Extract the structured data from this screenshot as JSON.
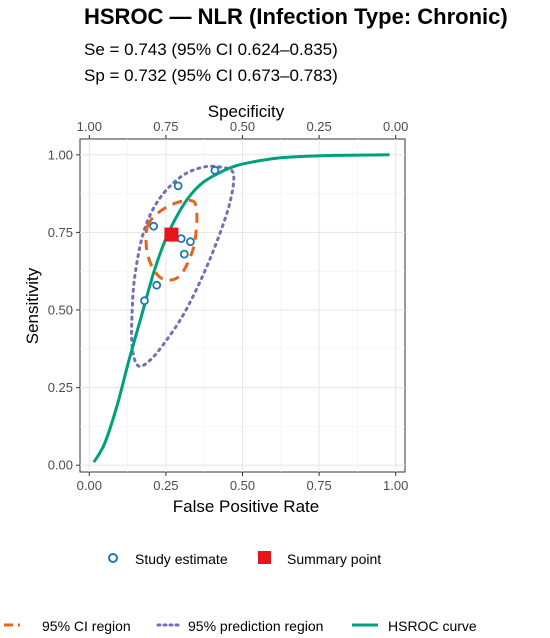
{
  "chart_data": {
    "type": "scatter",
    "title": "HSROC — NLR (Infection Type: Chronic)",
    "subtitles": [
      "Se = 0.743 (95% CI 0.624–0.835)",
      "Sp = 0.732 (95% CI 0.673–0.783)"
    ],
    "xlabel": "False Positive Rate",
    "ylabel": "Sensitivity",
    "secondary_xlabel": "Specificity",
    "xlim": [
      0,
      1
    ],
    "ylim": [
      0,
      1
    ],
    "x_ticks": [
      "0.00",
      "0.25",
      "0.50",
      "0.75",
      "1.00"
    ],
    "y_ticks": [
      "0.00",
      "0.25",
      "0.50",
      "0.75",
      "1.00"
    ],
    "top_ticks": [
      "1.00",
      "0.75",
      "0.50",
      "0.25",
      "0.00"
    ],
    "grid": true,
    "summary_point": {
      "name": "Summary point",
      "fpr": 0.268,
      "sensitivity": 0.743,
      "color": "#e8141c"
    },
    "study_estimates": {
      "name": "Study estimate",
      "color": "#1f78b4",
      "points": [
        {
          "fpr": 0.29,
          "sensitivity": 0.9
        },
        {
          "fpr": 0.41,
          "sensitivity": 0.95
        },
        {
          "fpr": 0.21,
          "sensitivity": 0.77
        },
        {
          "fpr": 0.3,
          "sensitivity": 0.73
        },
        {
          "fpr": 0.33,
          "sensitivity": 0.72
        },
        {
          "fpr": 0.31,
          "sensitivity": 0.68
        },
        {
          "fpr": 0.22,
          "sensitivity": 0.58
        },
        {
          "fpr": 0.18,
          "sensitivity": 0.53
        }
      ]
    },
    "ci_region": {
      "name": "95% CI region",
      "color": "#e8631c",
      "points": [
        [
          0.19,
          0.77
        ],
        [
          0.21,
          0.8
        ],
        [
          0.25,
          0.83
        ],
        [
          0.3,
          0.85
        ],
        [
          0.34,
          0.85
        ],
        [
          0.35,
          0.82
        ],
        [
          0.35,
          0.77
        ],
        [
          0.34,
          0.7
        ],
        [
          0.31,
          0.63
        ],
        [
          0.28,
          0.6
        ],
        [
          0.24,
          0.6
        ],
        [
          0.21,
          0.63
        ],
        [
          0.19,
          0.68
        ],
        [
          0.185,
          0.73
        ]
      ]
    },
    "prediction_region": {
      "name": "95% prediction region",
      "color": "#7570b3",
      "points": [
        [
          0.14,
          0.38
        ],
        [
          0.14,
          0.5
        ],
        [
          0.15,
          0.62
        ],
        [
          0.18,
          0.76
        ],
        [
          0.23,
          0.86
        ],
        [
          0.3,
          0.93
        ],
        [
          0.37,
          0.96
        ],
        [
          0.43,
          0.96
        ],
        [
          0.47,
          0.94
        ],
        [
          0.46,
          0.85
        ],
        [
          0.42,
          0.73
        ],
        [
          0.37,
          0.61
        ],
        [
          0.31,
          0.49
        ],
        [
          0.25,
          0.4
        ],
        [
          0.2,
          0.34
        ],
        [
          0.16,
          0.32
        ]
      ]
    },
    "hsroc_curve": {
      "name": "HSROC curve",
      "color": "#00a07a",
      "points": [
        [
          0.015,
          0.01
        ],
        [
          0.05,
          0.07
        ],
        [
          0.09,
          0.19
        ],
        [
          0.13,
          0.34
        ],
        [
          0.17,
          0.48
        ],
        [
          0.21,
          0.62
        ],
        [
          0.25,
          0.73
        ],
        [
          0.29,
          0.81
        ],
        [
          0.33,
          0.87
        ],
        [
          0.37,
          0.91
        ],
        [
          0.42,
          0.94
        ],
        [
          0.48,
          0.965
        ],
        [
          0.55,
          0.98
        ],
        [
          0.62,
          0.99
        ],
        [
          0.7,
          0.995
        ],
        [
          0.8,
          0.998
        ],
        [
          0.98,
          1.0
        ]
      ]
    }
  }
}
